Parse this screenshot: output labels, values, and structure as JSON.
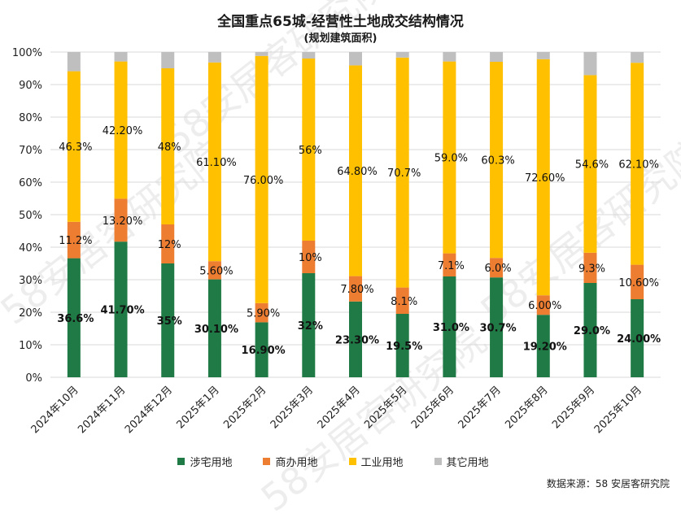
{
  "title": "全国重点65城-经营性土地成交结构情况",
  "subtitle": "(规划建筑面积)",
  "source": "数据来源：58 安居客研究院",
  "watermark": "58安居客研究院",
  "colors": {
    "residential": "#1f7a45",
    "commercial": "#ed7d31",
    "industrial": "#ffc000",
    "other": "#bfbfbf"
  },
  "legend": [
    {
      "label": "涉宅用地",
      "color_key": "residential"
    },
    {
      "label": "商办用地",
      "color_key": "commercial"
    },
    {
      "label": "工业用地",
      "color_key": "industrial"
    },
    {
      "label": "其它用地",
      "color_key": "other"
    }
  ],
  "chart_data": {
    "type": "bar",
    "stacked": true,
    "ylim": [
      0,
      100
    ],
    "yticks": [
      "0%",
      "10%",
      "20%",
      "30%",
      "40%",
      "50%",
      "60%",
      "70%",
      "80%",
      "90%",
      "100%"
    ],
    "categories": [
      "2024年10月",
      "2024年11月",
      "2024年12月",
      "2025年1月",
      "2025年2月",
      "2025年3月",
      "2025年4月",
      "2025年5月",
      "2025年6月",
      "2025年7月",
      "2025年8月",
      "2025年9月",
      "2025年10月"
    ],
    "series": [
      {
        "name": "涉宅用地",
        "color_key": "residential",
        "values": [
          36.6,
          41.7,
          35,
          30.1,
          16.9,
          32,
          23.3,
          19.5,
          31.0,
          30.7,
          19.2,
          29.0,
          24.0
        ],
        "labels": [
          "36.6%",
          "41.70%",
          "35%",
          "30.10%",
          "16.90%",
          "32%",
          "23.30%",
          "19.5%",
          "31.0%",
          "30.7%",
          "19.20%",
          "29.0%",
          "24.00%"
        ]
      },
      {
        "name": "商办用地",
        "color_key": "commercial",
        "values": [
          11.2,
          13.2,
          12,
          5.6,
          5.9,
          10,
          7.8,
          8.1,
          7.1,
          6.0,
          6.0,
          9.3,
          10.6
        ],
        "labels": [
          "11.2%",
          "13.20%",
          "12%",
          "5.60%",
          "5.90%",
          "10%",
          "7.80%",
          "8.1%",
          "7.1%",
          "6.0%",
          "6.00%",
          "9.3%",
          "10.60%"
        ]
      },
      {
        "name": "工业用地",
        "color_key": "industrial",
        "values": [
          46.3,
          42.2,
          48,
          61.1,
          76.0,
          56,
          64.8,
          70.7,
          59.0,
          60.3,
          72.6,
          54.6,
          62.1
        ],
        "labels": [
          "46.3%",
          "42.20%",
          "48%",
          "61.10%",
          "76.00%",
          "56%",
          "64.80%",
          "70.7%",
          "59.0%",
          "60.3%",
          "72.60%",
          "54.6%",
          "62.10%"
        ]
      },
      {
        "name": "其它用地",
        "color_key": "other",
        "values": [
          5.9,
          2.9,
          5,
          3.2,
          1.2,
          2,
          4.1,
          1.7,
          2.9,
          3.0,
          2.2,
          7.1,
          3.3
        ],
        "labels": []
      }
    ]
  }
}
